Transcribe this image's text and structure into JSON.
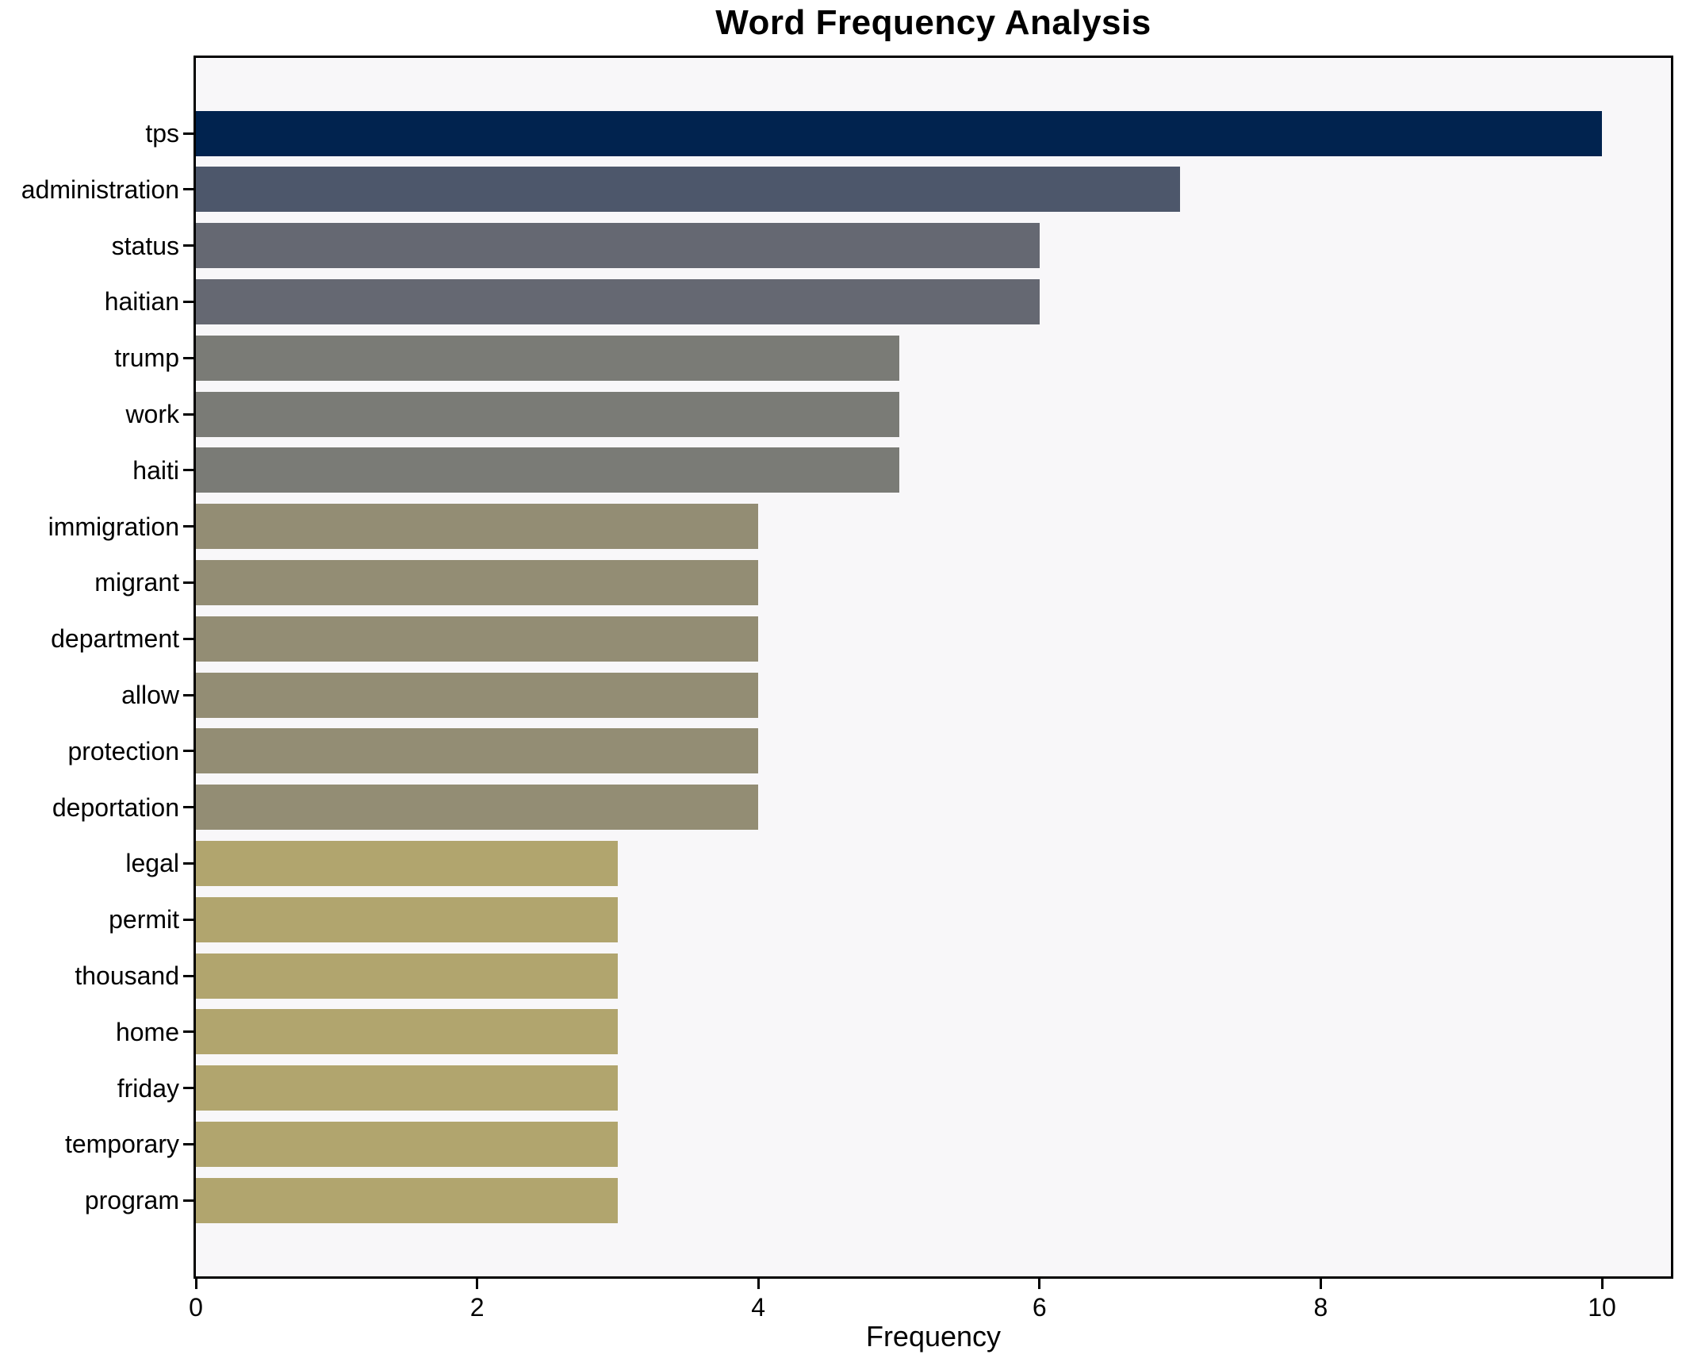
{
  "chart_data": {
    "type": "bar",
    "orientation": "horizontal",
    "title": "Word Frequency Analysis",
    "xlabel": "Frequency",
    "ylabel": "",
    "categories": [
      "tps",
      "administration",
      "status",
      "haitian",
      "trump",
      "work",
      "haiti",
      "immigration",
      "migrant",
      "department",
      "allow",
      "protection",
      "deportation",
      "legal",
      "permit",
      "thousand",
      "home",
      "friday",
      "temporary",
      "program"
    ],
    "values": [
      10,
      7,
      6,
      6,
      5,
      5,
      5,
      4,
      4,
      4,
      4,
      4,
      4,
      3,
      3,
      3,
      3,
      3,
      3,
      3
    ],
    "bar_colors": [
      "#01234f",
      "#4d576b",
      "#656872",
      "#656872",
      "#7a7b76",
      "#7a7b76",
      "#7a7b76",
      "#938d74",
      "#938d74",
      "#938d74",
      "#938d74",
      "#938d74",
      "#938d74",
      "#b1a56e",
      "#b1a56e",
      "#b1a56e",
      "#b1a56e",
      "#b1a56e",
      "#b1a56e",
      "#b1a56e"
    ],
    "x_ticks": [
      0,
      2,
      4,
      6,
      8,
      10
    ],
    "xlim": [
      0,
      10.5
    ],
    "grid": false,
    "legend_position": "none",
    "plot_bg": "#f8f7f9",
    "figure_bg": "#ffffff",
    "spine_color": "#000000"
  }
}
